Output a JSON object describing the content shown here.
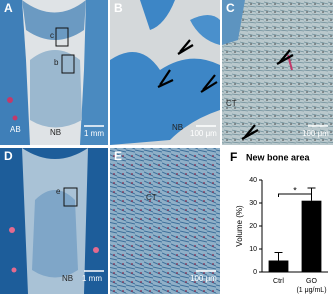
{
  "panels": [
    {
      "letter": "A",
      "texts": [
        "c",
        "b",
        "AB",
        "NB"
      ],
      "scale": "1 mm"
    },
    {
      "letter": "B",
      "texts": [
        "NB"
      ],
      "scale": "100 μm"
    },
    {
      "letter": "C",
      "texts": [
        "CT"
      ],
      "scale": "100 μm"
    },
    {
      "letter": "D",
      "texts": [
        "e",
        "NB"
      ],
      "scale": "1 mm"
    },
    {
      "letter": "E",
      "texts": [
        "CT"
      ],
      "scale": "100 μm"
    }
  ],
  "chart_data": {
    "type": "bar",
    "letter": "F",
    "title": "New bone area",
    "ylabel": "Volume (%)",
    "categories": [
      "Ctrl",
      "GO (1 μg/mL)"
    ],
    "values": [
      5,
      31
    ],
    "errors": [
      3.5,
      5.5
    ],
    "color": "#000000",
    "ylim": [
      0,
      40
    ],
    "yticks": [
      0,
      10,
      20,
      30,
      40
    ],
    "annotation": "*"
  }
}
